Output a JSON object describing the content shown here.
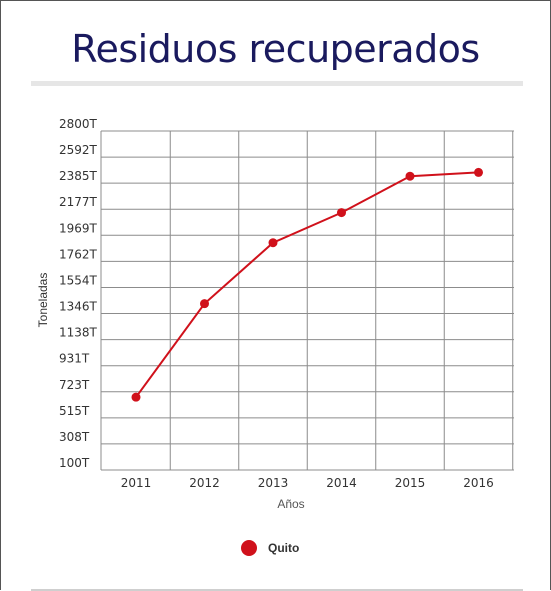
{
  "page": {
    "title": "Residuos recuperados"
  },
  "chart_data": {
    "type": "line",
    "title": "Residuos recuperados",
    "xlabel": "Años",
    "ylabel": "Toneladas",
    "categories": [
      "2011",
      "2012",
      "2013",
      "2014",
      "2015",
      "2016"
    ],
    "y_ticks": [
      "100T",
      "308T",
      "515T",
      "723T",
      "931T",
      "1138T",
      "1346T",
      "1554T",
      "1762T",
      "1969T",
      "2177T",
      "2385T",
      "2592T",
      "2800T"
    ],
    "ylim": [
      100,
      2800
    ],
    "grid": true,
    "legend_position": "bottom-center",
    "series": [
      {
        "name": "Quito",
        "color": "#d0111b",
        "values": [
          680,
          1425,
          1910,
          2150,
          2440,
          2470
        ]
      }
    ]
  },
  "colors": {
    "title": "#1a1a5e",
    "grid": "#8c8c8c",
    "axis_text": "#333333",
    "series": "#d0111b"
  }
}
